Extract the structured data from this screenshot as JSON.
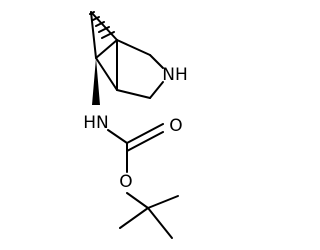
{
  "atoms": {
    "ring_nitrogen": "NH",
    "carbamate_nitrogen": "HN",
    "carbonyl_oxygen": "O",
    "ester_oxygen": "O"
  }
}
